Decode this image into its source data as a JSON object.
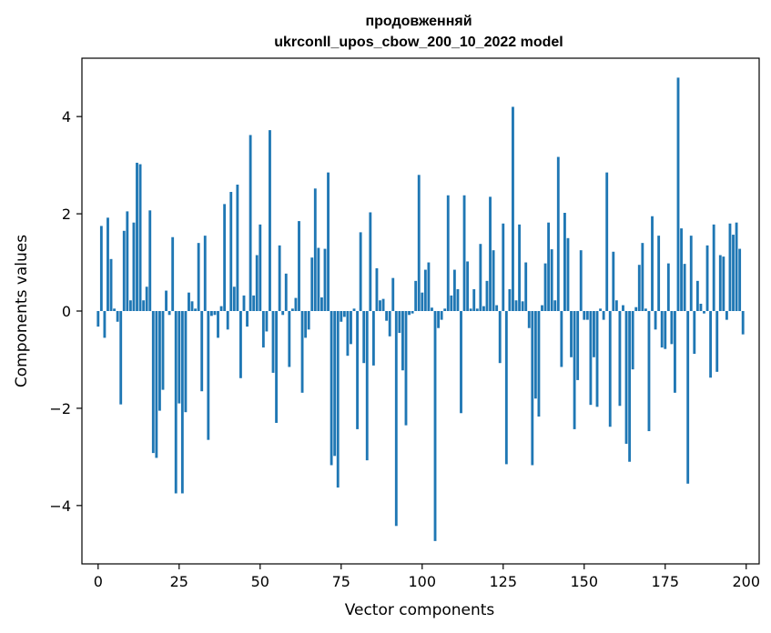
{
  "chart_data": {
    "type": "bar",
    "title_line1": "продовженняй",
    "title_line2": "ukrconll_upos_cbow_200_10_2022 model",
    "xlabel": "Vector components",
    "ylabel": "Components values",
    "xlim": [
      -5,
      204
    ],
    "ylim": [
      -5.2,
      5.2
    ],
    "xticks": [
      0,
      25,
      50,
      75,
      100,
      125,
      150,
      175,
      200
    ],
    "yticks": [
      -4,
      -2,
      0,
      2,
      4
    ],
    "ytick_labels": [
      "−4",
      "−2",
      "0",
      "2",
      "4"
    ],
    "bar_color": "#1f77b4",
    "x": [
      0,
      1,
      2,
      3,
      4,
      5,
      6,
      7,
      8,
      9,
      10,
      11,
      12,
      13,
      14,
      15,
      16,
      17,
      18,
      19,
      20,
      21,
      22,
      23,
      24,
      25,
      26,
      27,
      28,
      29,
      30,
      31,
      32,
      33,
      34,
      35,
      36,
      37,
      38,
      39,
      40,
      41,
      42,
      43,
      44,
      45,
      46,
      47,
      48,
      49,
      50,
      51,
      52,
      53,
      54,
      55,
      56,
      57,
      58,
      59,
      60,
      61,
      62,
      63,
      64,
      65,
      66,
      67,
      68,
      69,
      70,
      71,
      72,
      73,
      74,
      75,
      76,
      77,
      78,
      79,
      80,
      81,
      82,
      83,
      84,
      85,
      86,
      87,
      88,
      89,
      90,
      91,
      92,
      93,
      94,
      95,
      96,
      97,
      98,
      99,
      100,
      101,
      102,
      103,
      104,
      105,
      106,
      107,
      108,
      109,
      110,
      111,
      112,
      113,
      114,
      115,
      116,
      117,
      118,
      119,
      120,
      121,
      122,
      123,
      124,
      125,
      126,
      127,
      128,
      129,
      130,
      131,
      132,
      133,
      134,
      135,
      136,
      137,
      138,
      139,
      140,
      141,
      142,
      143,
      144,
      145,
      146,
      147,
      148,
      149,
      150,
      151,
      152,
      153,
      154,
      155,
      156,
      157,
      158,
      159,
      160,
      161,
      162,
      163,
      164,
      165,
      166,
      167,
      168,
      169,
      170,
      171,
      172,
      173,
      174,
      175,
      176,
      177,
      178,
      179,
      180,
      181,
      182,
      183,
      184,
      185,
      186,
      187,
      188,
      189,
      190,
      191,
      192,
      193,
      194,
      195,
      196,
      197,
      198,
      199
    ],
    "values": [
      -0.32,
      1.75,
      -0.55,
      1.92,
      1.07,
      0.05,
      -0.22,
      -1.92,
      1.65,
      2.05,
      0.22,
      1.82,
      3.05,
      3.02,
      0.22,
      0.5,
      2.07,
      -2.92,
      -3.02,
      -2.05,
      -1.62,
      0.42,
      -0.08,
      1.52,
      -3.75,
      -1.9,
      -3.75,
      -2.08,
      0.38,
      0.2,
      0.05,
      1.4,
      -1.65,
      1.55,
      -2.65,
      -0.1,
      -0.08,
      -0.55,
      0.1,
      2.2,
      -0.38,
      2.45,
      0.5,
      2.6,
      -1.38,
      0.32,
      -0.32,
      3.62,
      0.32,
      1.15,
      1.78,
      -0.75,
      -0.42,
      3.72,
      -1.27,
      -2.3,
      1.35,
      -0.08,
      0.77,
      -1.15,
      0.05,
      0.27,
      1.85,
      -1.68,
      -0.55,
      -0.38,
      1.1,
      2.52,
      1.3,
      0.28,
      1.28,
      2.85,
      -3.17,
      -2.98,
      -3.63,
      -0.22,
      -0.12,
      -0.92,
      -0.68,
      0.05,
      -2.43,
      1.62,
      -1.07,
      -3.07,
      2.03,
      -1.12,
      0.88,
      0.22,
      0.25,
      -0.2,
      -0.52,
      0.68,
      -4.42,
      -0.45,
      -1.22,
      -2.35,
      -0.08,
      -0.05,
      0.62,
      2.8,
      0.38,
      0.85,
      1.0,
      0.07,
      -4.73,
      -0.35,
      -0.18,
      0.05,
      2.38,
      0.32,
      0.85,
      0.45,
      -2.1,
      2.38,
      1.02,
      0.05,
      0.45,
      0.05,
      1.38,
      0.1,
      0.62,
      2.35,
      1.25,
      0.12,
      -1.07,
      1.8,
      -3.15,
      0.45,
      4.2,
      0.22,
      1.78,
      0.2,
      1.0,
      -0.35,
      -3.17,
      -1.8,
      -2.17,
      0.12,
      0.98,
      1.82,
      1.27,
      0.22,
      3.17,
      -1.15,
      2.02,
      1.5,
      -0.95,
      -2.43,
      -1.42,
      1.25,
      -0.18,
      -0.18,
      -1.93,
      -0.95,
      -1.97,
      0.05,
      -0.18,
      2.85,
      -2.38,
      1.22,
      0.22,
      -1.95,
      0.12,
      -2.73,
      -3.1,
      -1.2,
      0.08,
      0.95,
      1.4,
      0.05,
      -2.47,
      1.95,
      -0.38,
      1.55,
      -0.75,
      -0.78,
      0.98,
      -0.68,
      -1.68,
      4.8,
      1.7,
      0.97,
      -3.55,
      1.55,
      -0.88,
      0.62,
      0.15,
      -0.05,
      1.35,
      -1.37,
      1.78,
      -1.25,
      1.15,
      1.12,
      -0.18,
      1.8,
      1.57,
      1.82,
      1.28,
      -0.48
    ]
  }
}
